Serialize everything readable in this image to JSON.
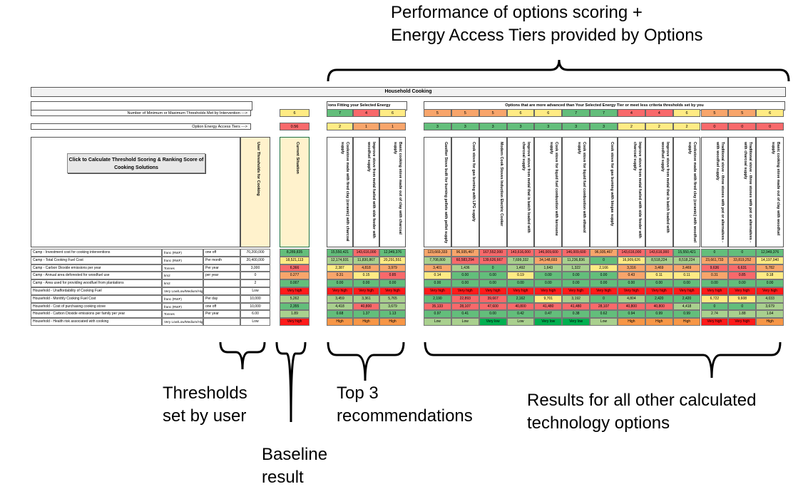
{
  "annotations": {
    "top": "Performance of options scoring +\nEnergy Access Tiers provided by Options",
    "thresholds": "Thresholds\nset by user",
    "baseline": "Baseline\nresult",
    "top3": "Top 3\nrecommendations",
    "others": "Results for all other calculated\ntechnology options"
  },
  "sheet": {
    "title": "Household Cooking",
    "top3_header": "ions Fitting your Selected Energy",
    "others_header": "Options that are more advanced than Your Selected Energy Tier or meet less criteria thresholds set by you",
    "thresholds_met_label": "Number of Minimum or Maximum Thresholds Met by Intervention --->",
    "thresholds_met_value": "6",
    "tiers_label": "Option Energy Access Tiers --->",
    "tiers_value": "0.56",
    "button_label": "Click to Calculate Threshold Scoring & Ranking Score of Cooking Solutions",
    "user_thresholds_header": "User Thresholds for Cooking",
    "current_situation_header": "Current Situation",
    "top3_thresholds_met": [
      "7",
      "4",
      "6"
    ],
    "top3_tiers": [
      "2",
      "1",
      "1"
    ],
    "other_thresholds_met": [
      "5",
      "5",
      "5",
      "6",
      "6",
      "7",
      "7",
      "4",
      "4",
      "6",
      "5",
      "5",
      "6"
    ],
    "other_tiers": [
      "3",
      "3",
      "3",
      "3",
      "3",
      "3",
      "3",
      "2",
      "2",
      "2",
      "0",
      "0",
      "0"
    ],
    "top3_names": [
      "Cookstove made with fired clay (ceramic) with charcoal supply",
      "Improve stove from metal fueled with side feeder with woodfuel supply",
      "Basic cooking stove made out of clay with charcoal supply"
    ],
    "other_names": [
      "Gasifier Stove built for burning pellets with pellet supply",
      "Cook stove for gas burning with LPG supply",
      "Modern Cook Stoves Induction Electric Cooker",
      "Improve stove from metal that is batch loaded with charcoal supply",
      "Cook stove for liquid fuel combustion with kerosene supply",
      "Cook stove for liquid fuel combustion with ethanol supply",
      "Cook stove for gas burning with biogas supply",
      "Improve stove from metal fueled with side feeder with charcoal supply",
      "Improve stove from metal that is batch loaded with woodfuel supply",
      "Cookstove made with fired clay (ceramic) with woodfuel supply",
      "Traditional stove - three stones with pot or alternatives - with woodfuel supply",
      "Traditional stove - three stones with pot or alternatives - with charcoal supply",
      "Basic cooking stove made out of clay with woodfuel supply"
    ],
    "rows": [
      {
        "label": "Camp - Investment cost for cooking interventions",
        "unit": "franc (RWF)",
        "period": "one off",
        "threshold": "70,200,000",
        "current": "8,289,835",
        "top3": [
          "15,550,421",
          "143,616,000",
          "12,949,376"
        ],
        "others": [
          "123,669,333",
          "96,935,467",
          "167,552,000",
          "143,616,000",
          "146,009,600",
          "146,009,600",
          "96,935,467",
          "143,616,000",
          "143,616,000",
          "15,550,421",
          "0",
          "0",
          "12,949,376"
        ]
      },
      {
        "label": "Camp - Total Cooking Fuel Cost",
        "unit": "franc (RWF)",
        "period": "Per month",
        "threshold": "20,400,000",
        "current": "18,521,113",
        "top3": [
          "12,174,931",
          "11,830,867",
          "20,291,551"
        ],
        "others": [
          "7,708,800",
          "60,583,294",
          "139,626,667",
          "7,699,332",
          "34,148,693",
          "11,236,836",
          "0",
          "16,909,626",
          "8,518,224",
          "8,518,224",
          "23,661,733",
          "33,819,252",
          "14,197,040"
        ]
      },
      {
        "label": "Camp - Carbon Dioxide emissions per year",
        "unit": "Tonnes",
        "period": "Per year",
        "threshold": "3,000",
        "current": "6,366",
        "top3": [
          "2,387",
          "4,818",
          "3,979"
        ],
        "others": [
          "3,401",
          "1,436",
          "0",
          "1,492",
          "1,643",
          "1,322",
          "2,166",
          "3,316",
          "3,469",
          "3,469",
          "9,636",
          "6,631",
          "5,782"
        ]
      },
      {
        "label": "Camp - Annual area deforested for woodfuel use",
        "unit": "km2",
        "period": "per year",
        "threshold": "0",
        "current": "0.277",
        "top3": [
          "0.31",
          "0.15",
          "0.85"
        ],
        "others": [
          "0.14",
          "0.00",
          "0.00",
          "0.19",
          "0.00",
          "0.00",
          "0.00",
          "0.43",
          "0.11",
          "0.11",
          "0.31",
          "0.85",
          "0.18"
        ]
      },
      {
        "label": "Camp - Area used for providing woodfuel from plantations",
        "unit": "km2",
        "period": "",
        "threshold": "2",
        "current": "0.007",
        "top3": [
          "0.00",
          "0.00",
          "0.00"
        ],
        "others": [
          "0.00",
          "0.00",
          "0.00",
          "0.00",
          "0.00",
          "0.00",
          "0.00",
          "0.00",
          "0.00",
          "0.00",
          "0.00",
          "0.00",
          "0.00"
        ]
      },
      {
        "label": "Household - Unaffordability of Cooking Fuel",
        "unit": "Very Low/Low/Medium/High/Very high",
        "period": "",
        "threshold": "Low",
        "current": "Very high",
        "top3": [
          "Very high",
          "Very high",
          "Very high"
        ],
        "others": [
          "Very high",
          "Very high",
          "Very high",
          "Very high",
          "Very high",
          "Very high",
          "Very high",
          "Very high",
          "Very high",
          "Very high",
          "Very high",
          "Very high",
          "Very high"
        ]
      },
      {
        "label": "Household - Monthly Cooking Fuel Cost",
        "unit": "franc (RWF)",
        "period": "Per day",
        "threshold": "10,000",
        "current": "5,262",
        "top3": [
          "3,459",
          "3,361",
          "5,765"
        ],
        "others": [
          "2,190",
          "22,893",
          "39,667",
          "2,162",
          "9,701",
          "3,192",
          "0",
          "4,804",
          "2,420",
          "2,420",
          "6,722",
          "9,608",
          "4,033"
        ]
      },
      {
        "label": "Household - Cost of purchasing cooking stove",
        "unit": "franc (RWF)",
        "period": "one off",
        "threshold": "10,000",
        "current": "2,355",
        "top3": [
          "4,418",
          "40,800",
          "3,679"
        ],
        "others": [
          "35,133",
          "28,107",
          "47,600",
          "40,800",
          "41,480",
          "41,480",
          "28,107",
          "40,800",
          "40,800",
          "4,418",
          "0",
          "0",
          "3,679"
        ]
      },
      {
        "label": "Household - Carbon Dioxide emissions per family per year",
        "unit": "Tonnes",
        "period": "Per year",
        "threshold": "6.00",
        "current": "1.89",
        "top3": [
          "0.68",
          "1.37",
          "1.13"
        ],
        "others": [
          "0.97",
          "0.41",
          "0.00",
          "0.42",
          "0.47",
          "0.38",
          "0.62",
          "0.94",
          "0.99",
          "0.99",
          "2.74",
          "1.88",
          "1.64"
        ]
      },
      {
        "label": "Household - Health risk associated with cooking",
        "unit": "Very Low/Low/Medium/High/Very high",
        "period": "",
        "threshold": "Low",
        "current": "Very high",
        "top3": [
          "High",
          "High",
          "High"
        ],
        "others": [
          "Low",
          "Low",
          "Very low",
          "Low",
          "Very low",
          "Very low",
          "Low",
          "High",
          "High",
          "High",
          "Very high",
          "Very high",
          "High"
        ]
      }
    ]
  },
  "colors": {
    "green": "#63be7b",
    "lightgreen": "#a9d08e",
    "yellow": "#ffeb84",
    "orange": "#f8a56b",
    "red": "#f8696b",
    "brightred": "#ff1a1a",
    "beige": "#fff2cc",
    "darkgreen": "#00b050",
    "highorange": "#f79646"
  }
}
